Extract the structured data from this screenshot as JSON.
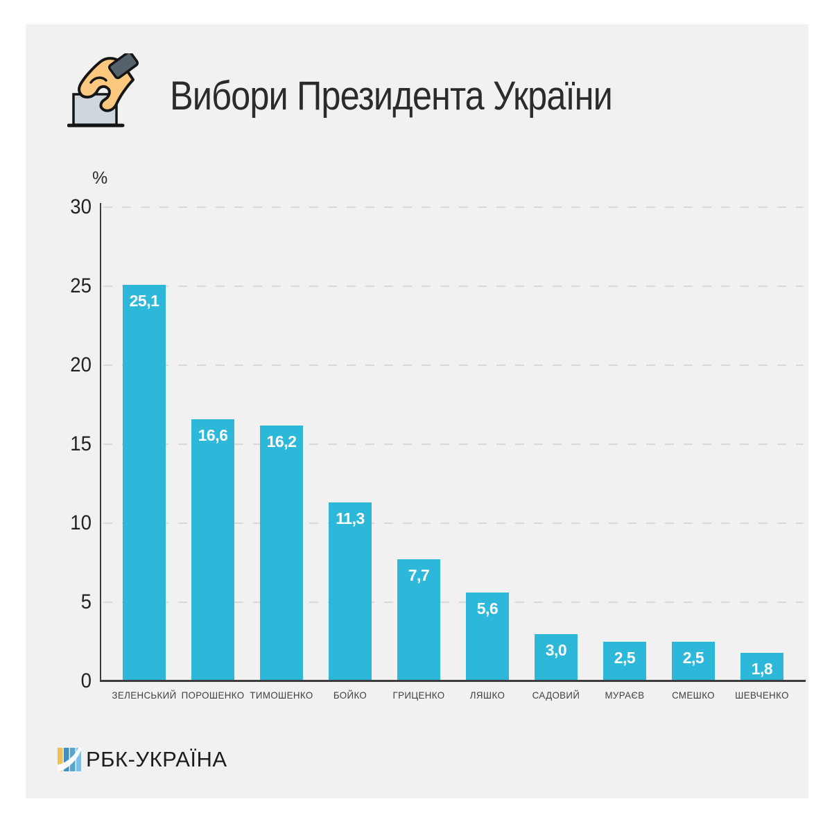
{
  "header": {
    "title": "Вибори Президента України",
    "icon": "hand-voting-ballot-box"
  },
  "chart_data": {
    "type": "bar",
    "title": "Вибори Президента України",
    "xlabel": "",
    "ylabel": "%",
    "ylim": [
      0,
      30
    ],
    "yticks": [
      0,
      5,
      10,
      15,
      20,
      25,
      30
    ],
    "grid": "horizontal-dashed",
    "legend_position": "none",
    "bar_color": "#2db8da",
    "categories": [
      "ЗЕЛЕНСЬКИЙ",
      "ПОРОШЕНКО",
      "ТИМОШЕНКО",
      "БОЙКО",
      "ГРИЦЕНКО",
      "ЛЯШКО",
      "САДОВИЙ",
      "МУРАЄВ",
      "СМЕШКО",
      "ШЕВЧЕНКО"
    ],
    "values": [
      25.1,
      16.6,
      16.2,
      11.3,
      7.7,
      5.6,
      3.0,
      2.5,
      2.5,
      1.8
    ],
    "value_labels": [
      "25,1",
      "16,6",
      "16,2",
      "11,3",
      "7,7",
      "5,6",
      "3,0",
      "2,5",
      "2,5",
      "1,8"
    ]
  },
  "footer": {
    "logo_text": "РБК-УКРАЇНА"
  },
  "colors": {
    "page_background": "#ffffff",
    "panel_background": "#f1f1f2",
    "bar": "#2db8da",
    "axis": "#3c3c3c",
    "gridline": "#d9d9d9",
    "title_text": "#2b2b2b",
    "value_label_text": "#ffffff",
    "logo_yellow": "#f0c052",
    "logo_blue_dark": "#3f8fc0",
    "logo_blue": "#55a5cf",
    "logo_blue_light": "#7cc2e2",
    "icon_skin": "#fbc880",
    "icon_cuff": "#55616b",
    "icon_box": "#cfd7dc"
  }
}
